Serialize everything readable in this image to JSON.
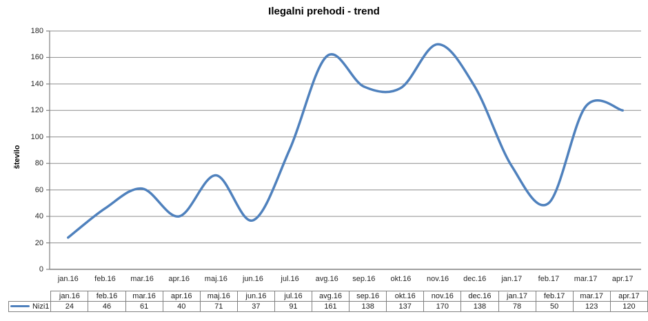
{
  "chart_data": {
    "type": "line",
    "smooth": true,
    "title": "Ilegalni prehodi - trend",
    "xlabel": "",
    "ylabel": "število",
    "categories": [
      "jan.16",
      "feb.16",
      "mar.16",
      "apr.16",
      "maj.16",
      "jun.16",
      "jul.16",
      "avg.16",
      "sep.16",
      "okt.16",
      "nov.16",
      "dec.16",
      "jan.17",
      "feb.17",
      "mar.17",
      "apr.17"
    ],
    "series": [
      {
        "name": "Nizi1",
        "values": [
          24,
          46,
          61,
          40,
          71,
          37,
          91,
          161,
          138,
          137,
          170,
          138,
          78,
          50,
          123,
          120
        ]
      }
    ],
    "ylim": [
      0,
      180
    ],
    "ytick_step": 20,
    "grid": "horizontal-only",
    "legend_position": "data-table-left",
    "data_table_shown": true
  },
  "colors": {
    "line": "#4F81BD",
    "grid": "#8C8C8C",
    "axis": "#7F7F7F",
    "table_border": "#808080",
    "title_text": "#000000",
    "label_text": "#262626"
  }
}
